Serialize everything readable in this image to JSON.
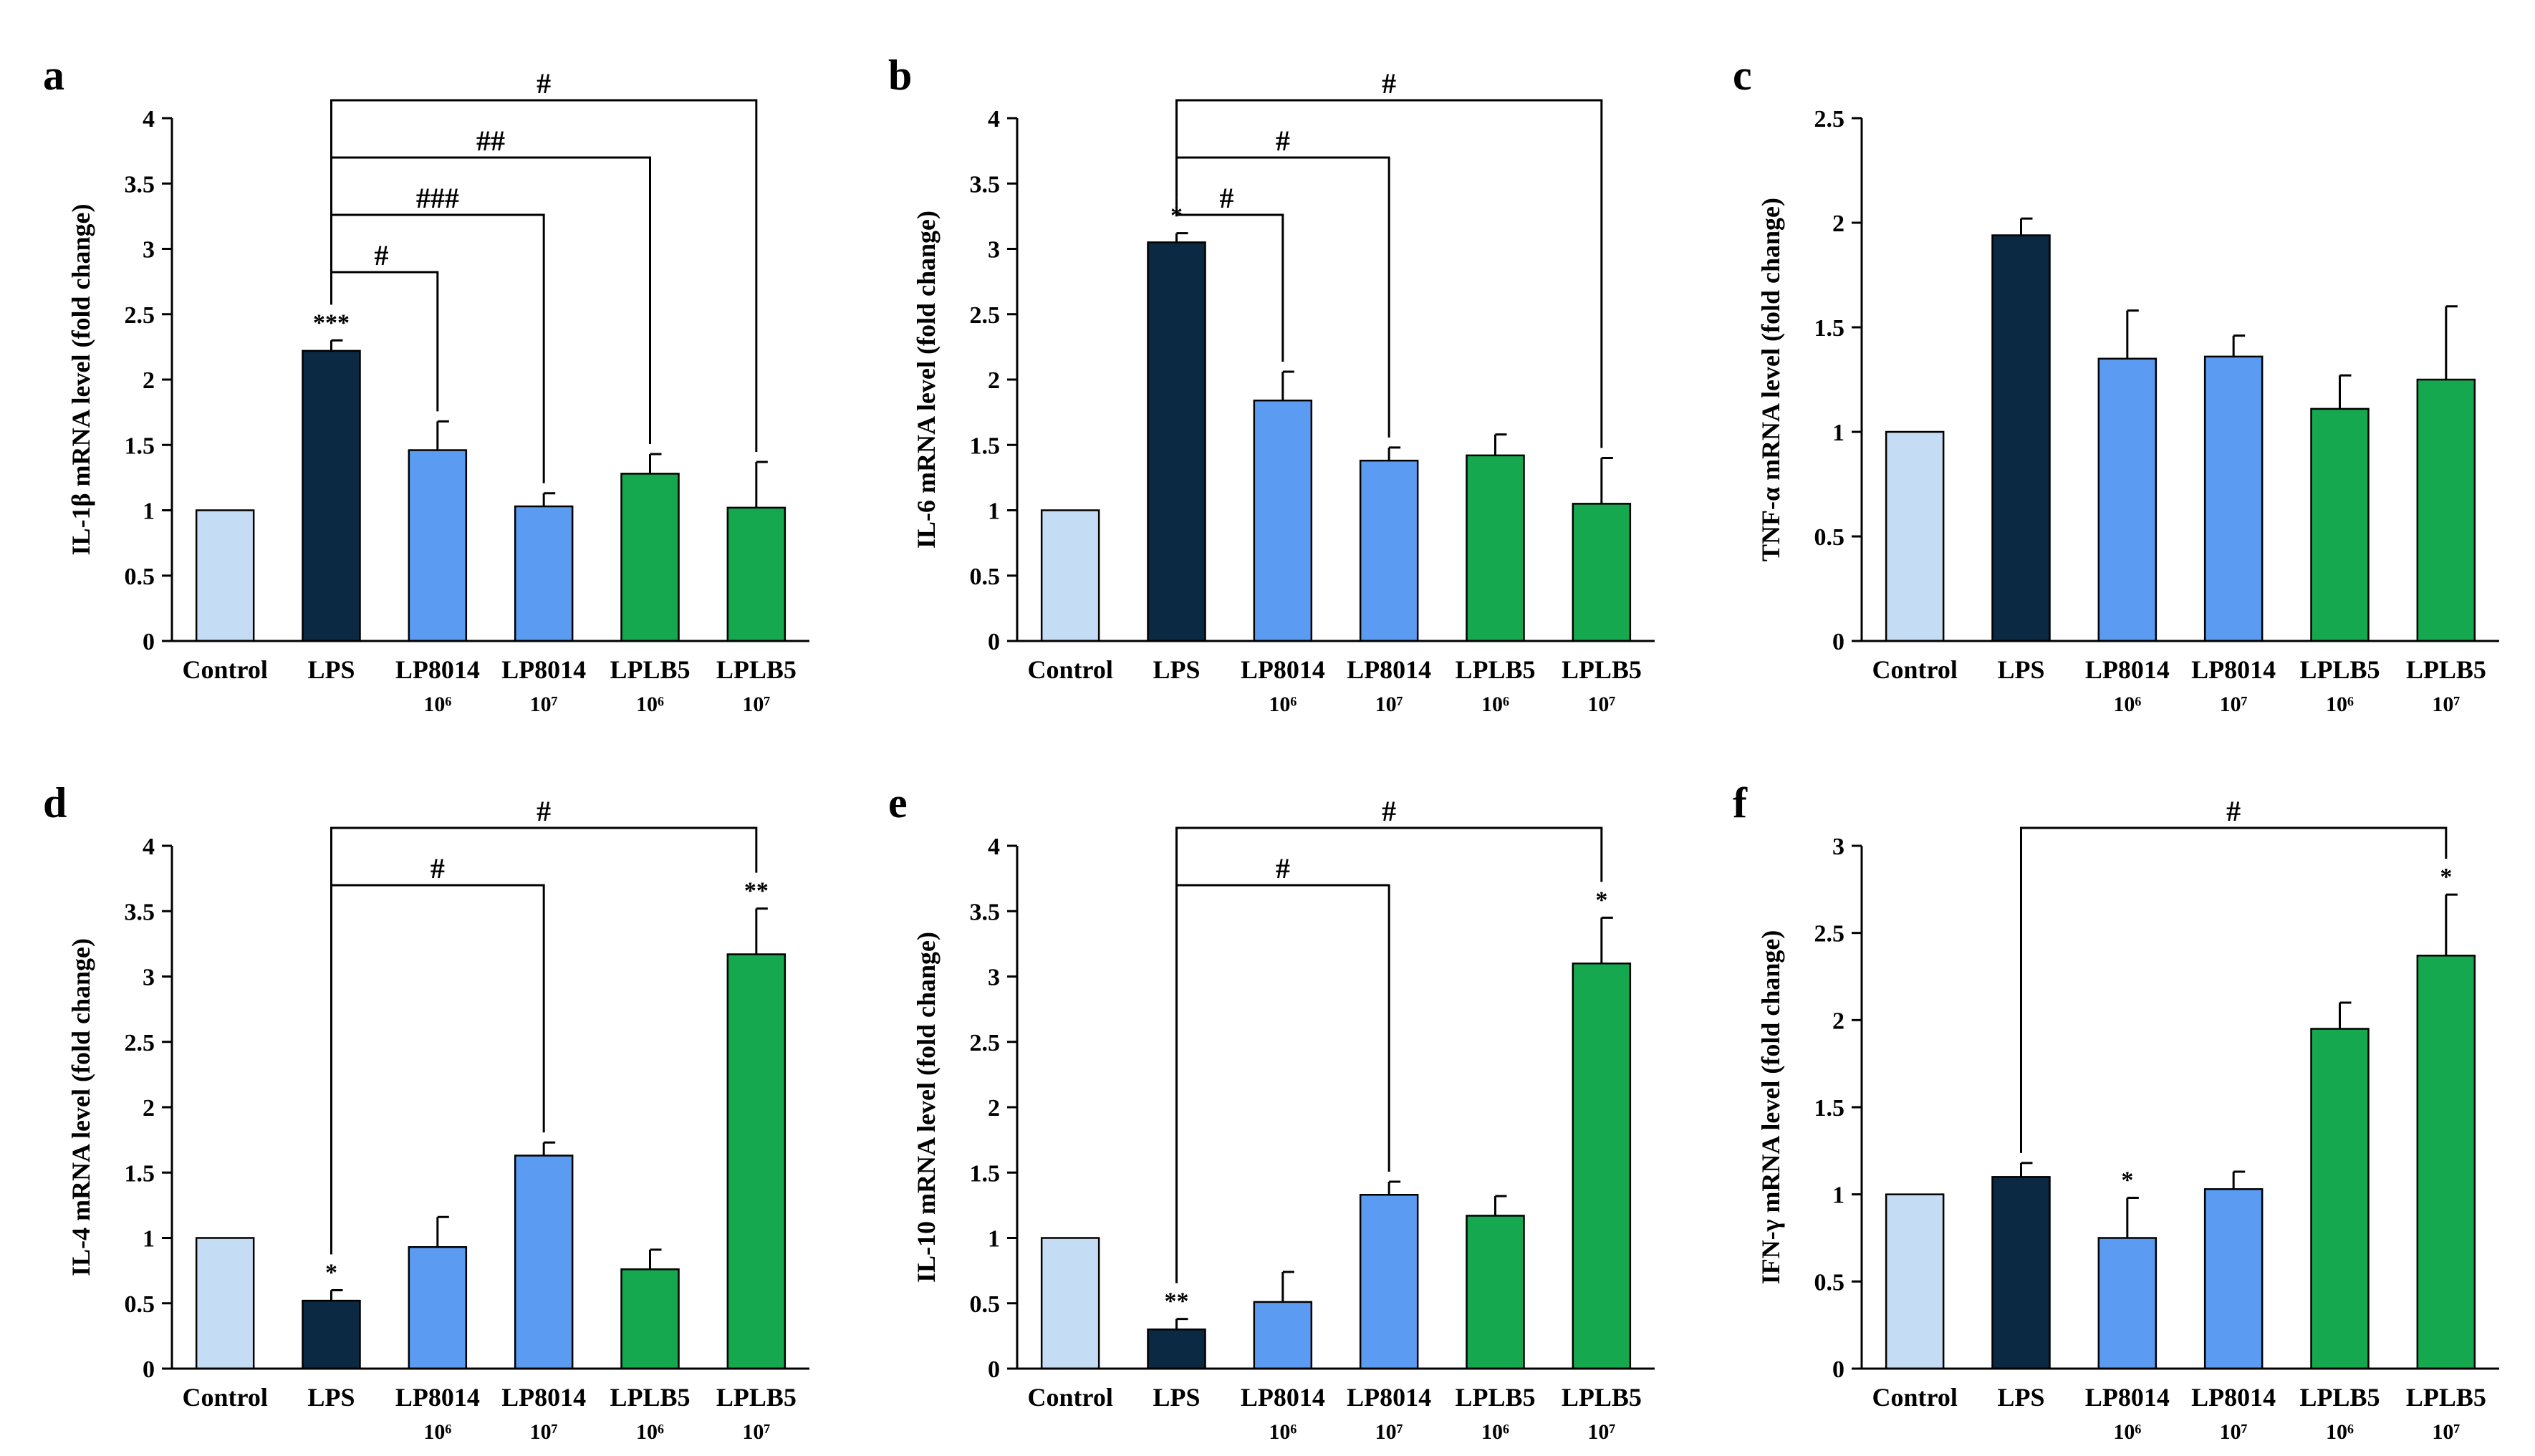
{
  "colors": {
    "control": "#c5dcf5",
    "lps": "#0b2942",
    "lp8014": "#5b9bf2",
    "lplb5": "#16a84e",
    "axis": "#000000"
  },
  "chart_data": [
    {
      "type": "bar",
      "panel_label": "a",
      "ylabel": "IL-1β mRNA level (fold change)",
      "ylim": [
        0,
        4
      ],
      "yticks": [
        "0",
        "0.5",
        "1",
        "1.5",
        "2",
        "2.5",
        "3",
        "3.5",
        "4"
      ],
      "categories": [
        {
          "name": "Control",
          "dose": ""
        },
        {
          "name": "LPS",
          "dose": ""
        },
        {
          "name": "LP8014",
          "dose": "10⁶"
        },
        {
          "name": "LP8014",
          "dose": "10⁷"
        },
        {
          "name": "LPLB5",
          "dose": "10⁶"
        },
        {
          "name": "LPLB5",
          "dose": "10⁷"
        }
      ],
      "values": [
        1.0,
        2.22,
        1.46,
        1.03,
        1.28,
        1.02
      ],
      "errors": [
        0,
        0.08,
        0.22,
        0.1,
        0.15,
        0.35
      ],
      "stars": [
        "",
        "***",
        "",
        "",
        "",
        ""
      ],
      "brackets": [
        {
          "from": 1,
          "to": 5,
          "label": "#"
        },
        {
          "from": 1,
          "to": 4,
          "label": "##"
        },
        {
          "from": 1,
          "to": 3,
          "label": "###"
        },
        {
          "from": 1,
          "to": 2,
          "label": "#"
        }
      ]
    },
    {
      "type": "bar",
      "panel_label": "b",
      "ylabel": "IL-6 mRNA level (fold change)",
      "ylim": [
        0,
        4
      ],
      "yticks": [
        "0",
        "0.5",
        "1",
        "1.5",
        "2",
        "2.5",
        "3",
        "3.5",
        "4"
      ],
      "categories": [
        {
          "name": "Control",
          "dose": ""
        },
        {
          "name": "LPS",
          "dose": ""
        },
        {
          "name": "LP8014",
          "dose": "10⁶"
        },
        {
          "name": "LP8014",
          "dose": "10⁷"
        },
        {
          "name": "LPLB5",
          "dose": "10⁶"
        },
        {
          "name": "LPLB5",
          "dose": "10⁷"
        }
      ],
      "values": [
        1.0,
        3.05,
        1.84,
        1.38,
        1.42,
        1.05
      ],
      "errors": [
        0,
        0.07,
        0.22,
        0.1,
        0.16,
        0.35
      ],
      "stars": [
        "",
        "*",
        "",
        "",
        "",
        ""
      ],
      "brackets": [
        {
          "from": 1,
          "to": 5,
          "label": "#"
        },
        {
          "from": 1,
          "to": 3,
          "label": "#"
        },
        {
          "from": 1,
          "to": 2,
          "label": "#"
        }
      ]
    },
    {
      "type": "bar",
      "panel_label": "c",
      "ylabel": "TNF-α  mRNA level (fold change)",
      "ylim": [
        0,
        2.5
      ],
      "yticks": [
        "0",
        "0.5",
        "1",
        "1.5",
        "2",
        "2.5"
      ],
      "categories": [
        {
          "name": "Control",
          "dose": ""
        },
        {
          "name": "LPS",
          "dose": ""
        },
        {
          "name": "LP8014",
          "dose": "10⁶"
        },
        {
          "name": "LP8014",
          "dose": "10⁷"
        },
        {
          "name": "LPLB5",
          "dose": "10⁶"
        },
        {
          "name": "LPLB5",
          "dose": "10⁷"
        }
      ],
      "values": [
        1.0,
        1.94,
        1.35,
        1.36,
        1.11,
        1.25
      ],
      "errors": [
        0,
        0.08,
        0.23,
        0.1,
        0.16,
        0.35
      ],
      "stars": [
        "",
        "",
        "",
        "",
        "",
        ""
      ],
      "brackets": []
    },
    {
      "type": "bar",
      "panel_label": "d",
      "ylabel": "IL-4 mRNA level (fold change)",
      "ylim": [
        0,
        4
      ],
      "yticks": [
        "0",
        "0.5",
        "1",
        "1.5",
        "2",
        "2.5",
        "3",
        "3.5",
        "4"
      ],
      "categories": [
        {
          "name": "Control",
          "dose": ""
        },
        {
          "name": "LPS",
          "dose": ""
        },
        {
          "name": "LP8014",
          "dose": "10⁶"
        },
        {
          "name": "LP8014",
          "dose": "10⁷"
        },
        {
          "name": "LPLB5",
          "dose": "10⁶"
        },
        {
          "name": "LPLB5",
          "dose": "10⁷"
        }
      ],
      "values": [
        1.0,
        0.52,
        0.93,
        1.63,
        0.76,
        3.17
      ],
      "errors": [
        0,
        0.08,
        0.23,
        0.1,
        0.15,
        0.35
      ],
      "stars": [
        "",
        "*",
        "",
        "",
        "",
        "**"
      ],
      "brackets": [
        {
          "from": 1,
          "to": 5,
          "label": "#"
        },
        {
          "from": 1,
          "to": 3,
          "label": "#"
        }
      ]
    },
    {
      "type": "bar",
      "panel_label": "e",
      "ylabel": "IL-10 mRNA level (fold change)",
      "ylim": [
        0,
        4
      ],
      "yticks": [
        "0",
        "0.5",
        "1",
        "1.5",
        "2",
        "2.5",
        "3",
        "3.5",
        "4"
      ],
      "categories": [
        {
          "name": "Control",
          "dose": ""
        },
        {
          "name": "LPS",
          "dose": ""
        },
        {
          "name": "LP8014",
          "dose": "10⁶"
        },
        {
          "name": "LP8014",
          "dose": "10⁷"
        },
        {
          "name": "LPLB5",
          "dose": "10⁶"
        },
        {
          "name": "LPLB5",
          "dose": "10⁷"
        }
      ],
      "values": [
        1.0,
        0.3,
        0.51,
        1.33,
        1.17,
        3.1
      ],
      "errors": [
        0,
        0.08,
        0.23,
        0.1,
        0.15,
        0.35
      ],
      "stars": [
        "",
        "**",
        "",
        "",
        "",
        "*"
      ],
      "brackets": [
        {
          "from": 1,
          "to": 5,
          "label": "#"
        },
        {
          "from": 1,
          "to": 3,
          "label": "#"
        }
      ]
    },
    {
      "type": "bar",
      "panel_label": "f",
      "ylabel": "IFN-γ mRNA level (fold change)",
      "ylim": [
        0,
        3
      ],
      "yticks": [
        "0",
        "0.5",
        "1",
        "1.5",
        "2",
        "2.5",
        "3"
      ],
      "categories": [
        {
          "name": "Control",
          "dose": ""
        },
        {
          "name": "LPS",
          "dose": ""
        },
        {
          "name": "LP8014",
          "dose": "10⁶"
        },
        {
          "name": "LP8014",
          "dose": "10⁷"
        },
        {
          "name": "LPLB5",
          "dose": "10⁶"
        },
        {
          "name": "LPLB5",
          "dose": "10⁷"
        }
      ],
      "values": [
        1.0,
        1.1,
        0.75,
        1.03,
        1.95,
        2.37
      ],
      "errors": [
        0,
        0.08,
        0.23,
        0.1,
        0.15,
        0.35
      ],
      "stars": [
        "",
        "",
        "*",
        "",
        "",
        "*"
      ],
      "brackets": [
        {
          "from": 1,
          "to": 5,
          "label": "#"
        }
      ]
    }
  ]
}
